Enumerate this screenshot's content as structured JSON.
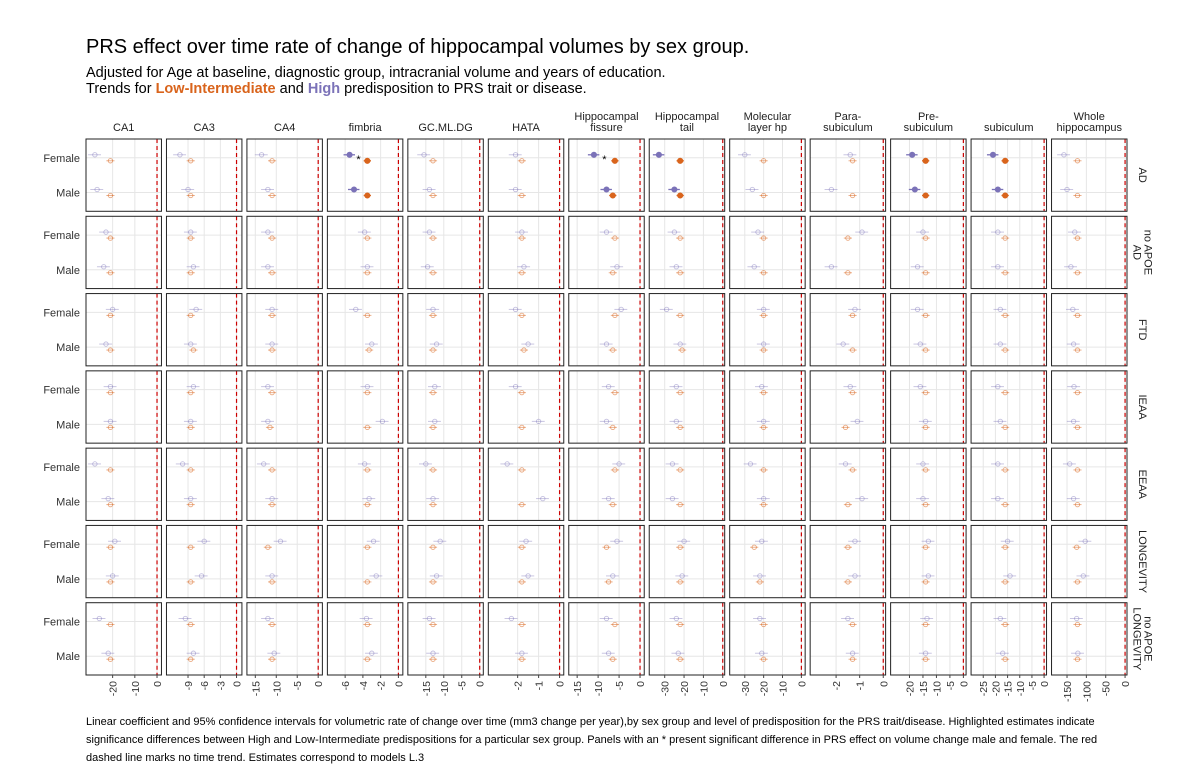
{
  "title": "PRS effect over time rate of change of hippocampal volumes by sex group.",
  "subtitle_line1": "Adjusted for Age at baseline, diagnostic group, intracranial volume and years of education.",
  "subtitle_line2": {
    "prefix": "Trends for ",
    "low_label": "Low-Intermediate",
    "mid": " and ",
    "high_label": "High",
    "suffix": " predisposition to PRS trait or disease."
  },
  "caption": "Linear coefficient and 95% confidence intervals for volumetric rate of change over time (mm3 change per year),by sex group and level of predisposition for the PRS trait/disease. Highlighted estimates indicate significance differences between High and Low-Intermediate predispositions for a particular sex group. Panels with an * present significant difference in PRS effect on volume change male and female. The red dashed line marks no time trend. Estimates correspond to models L.3",
  "colors": {
    "low": "#d9641c",
    "high": "#7b72b8",
    "zero_line": "#cc0000",
    "grid": "#e6e6e6"
  },
  "chart_data": {
    "type": "scatter",
    "subtype": "faceted forest plot (point estimates with 95% CI)",
    "rows_label": "sex group",
    "y_categories": [
      "Female",
      "Male"
    ],
    "series": [
      {
        "name": "Low-Intermediate",
        "color": "#d9641c"
      },
      {
        "name": "High",
        "color": "#7b72b8"
      }
    ],
    "columns": [
      {
        "label": [
          "CA1"
        ],
        "ticks": [
          -20,
          -10,
          0
        ],
        "xlim": [
          -32,
          2
        ]
      },
      {
        "label": [
          "CA3"
        ],
        "ticks": [
          -9,
          -6,
          -3,
          0
        ],
        "xlim": [
          -13,
          1
        ]
      },
      {
        "label": [
          "CA4"
        ],
        "ticks": [
          -15,
          -10,
          -5,
          0
        ],
        "xlim": [
          -17,
          1
        ]
      },
      {
        "label": [
          "fimbria"
        ],
        "ticks": [
          -6,
          -4,
          -2,
          0
        ],
        "xlim": [
          -8,
          0.5
        ]
      },
      {
        "label": [
          "GC.ML.DG"
        ],
        "ticks": [
          -15,
          -10,
          -5,
          0
        ],
        "xlim": [
          -20,
          1
        ]
      },
      {
        "label": [
          "HATA"
        ],
        "ticks": [
          -2,
          -1,
          0
        ],
        "xlim": [
          -3.4,
          0.2
        ]
      },
      {
        "label": [
          "Hippocampal",
          "fissure"
        ],
        "ticks": [
          -15,
          -10,
          -5,
          0
        ],
        "xlim": [
          -17,
          1
        ]
      },
      {
        "label": [
          "Hippocampal",
          "tail"
        ],
        "ticks": [
          -30,
          -20,
          -10,
          0
        ],
        "xlim": [
          -38,
          1
        ]
      },
      {
        "label": [
          "Molecular",
          "layer hp"
        ],
        "ticks": [
          -30,
          -20,
          -10,
          0
        ],
        "xlim": [
          -38,
          2
        ]
      },
      {
        "label": [
          "Para-",
          "subiculum"
        ],
        "ticks": [
          -2,
          -1,
          0
        ],
        "xlim": [
          -3.1,
          0.1
        ]
      },
      {
        "label": [
          "Pre-",
          "subiculum"
        ],
        "ticks": [
          -20,
          -15,
          -10,
          -5,
          0
        ],
        "xlim": [
          -27,
          1
        ]
      },
      {
        "label": [
          "subiculum"
        ],
        "ticks": [
          -25,
          -20,
          -15,
          -10,
          -5,
          0
        ],
        "xlim": [
          -30,
          1
        ]
      },
      {
        "label": [
          "Whole",
          "hippocampus"
        ],
        "ticks": [
          -150,
          -100,
          -50,
          0
        ],
        "xlim": [
          -190,
          5
        ]
      }
    ],
    "rows": [
      {
        "label": [
          "AD"
        ],
        "highlight_cols": [
          3,
          6,
          7,
          10,
          11
        ],
        "star_cols": [
          3,
          6
        ]
      },
      {
        "label": [
          "AD",
          "no APOE"
        ],
        "highlight_cols": [],
        "star_cols": []
      },
      {
        "label": [
          "FTD"
        ],
        "highlight_cols": [],
        "star_cols": []
      },
      {
        "label": [
          "IEAA"
        ],
        "highlight_cols": [],
        "star_cols": []
      },
      {
        "label": [
          "EEAA"
        ],
        "highlight_cols": [],
        "star_cols": []
      },
      {
        "label": [
          "LONGEVITY"
        ],
        "highlight_cols": [],
        "star_cols": []
      },
      {
        "label": [
          "LONGEVITY",
          "no APOE"
        ],
        "highlight_cols": [],
        "star_cols": []
      }
    ],
    "estimates": [
      {
        "low": [
          [
            -21,
            -21
          ],
          [
            -8.5,
            -8.5
          ],
          [
            -11,
            -11
          ],
          [
            -3.5,
            -3.5
          ],
          [
            -13,
            -13
          ],
          [
            -1.8,
            -1.8
          ],
          [
            -6,
            -6.5
          ],
          [
            -22,
            -22
          ],
          [
            -20,
            -20
          ],
          [
            -1.3,
            -1.3
          ],
          [
            -14,
            -14
          ],
          [
            -16,
            -16
          ],
          [
            -123,
            -123
          ]
        ],
        "high": [
          [
            -28,
            -27
          ],
          [
            -10.5,
            -9
          ],
          [
            -13.5,
            -12
          ],
          [
            -5.5,
            -5
          ],
          [
            -15.5,
            -14
          ],
          [
            -2.1,
            -2.1
          ],
          [
            -11,
            -8
          ],
          [
            -33,
            -25
          ],
          [
            -30,
            -26
          ],
          [
            -1.4,
            -2.2
          ],
          [
            -19,
            -18
          ],
          [
            -21,
            -19
          ],
          [
            -158,
            -150
          ]
        ]
      },
      {
        "low": [
          [
            -21,
            -21
          ],
          [
            -8.5,
            -8.5
          ],
          [
            -11,
            -11
          ],
          [
            -3.5,
            -3.5
          ],
          [
            -13,
            -13
          ],
          [
            -1.8,
            -1.8
          ],
          [
            -6,
            -6.5
          ],
          [
            -22,
            -22
          ],
          [
            -20,
            -20
          ],
          [
            -1.5,
            -1.5
          ],
          [
            -14,
            -14
          ],
          [
            -16,
            -16
          ],
          [
            -123,
            -123
          ]
        ],
        "high": [
          [
            -23,
            -24
          ],
          [
            -8.5,
            -8
          ],
          [
            -12,
            -12
          ],
          [
            -3.8,
            -3.5
          ],
          [
            -14,
            -14.5
          ],
          [
            -1.8,
            -1.7
          ],
          [
            -8,
            -5.5
          ],
          [
            -25,
            -24
          ],
          [
            -23,
            -25
          ],
          [
            -0.9,
            -2.2
          ],
          [
            -15,
            -17
          ],
          [
            -19,
            -19
          ],
          [
            -130,
            -140
          ]
        ]
      },
      {
        "low": [
          [
            -21,
            -21
          ],
          [
            -8.5,
            -8
          ],
          [
            -11,
            -11
          ],
          [
            -3.5,
            -3.3
          ],
          [
            -13,
            -13
          ],
          [
            -1.8,
            -1.7
          ],
          [
            -6,
            -6.5
          ],
          [
            -22,
            -21
          ],
          [
            -20,
            -20
          ],
          [
            -1.3,
            -1.3
          ],
          [
            -14,
            -14
          ],
          [
            -16,
            -16
          ],
          [
            -123,
            -123
          ]
        ],
        "high": [
          [
            -20,
            -23
          ],
          [
            -7.5,
            -8.5
          ],
          [
            -11,
            -11
          ],
          [
            -4.8,
            -3
          ],
          [
            -13,
            -12
          ],
          [
            -2.1,
            -1.5
          ],
          [
            -4.5,
            -8
          ],
          [
            -29,
            -22
          ],
          [
            -20,
            -20
          ],
          [
            -1.2,
            -1.7
          ],
          [
            -17,
            -16
          ],
          [
            -18,
            -18
          ],
          [
            -135,
            -133
          ]
        ]
      },
      {
        "low": [
          [
            -21,
            -21
          ],
          [
            -8.5,
            -8.5
          ],
          [
            -11,
            -11.5
          ],
          [
            -3.5,
            -3.5
          ],
          [
            -13,
            -13
          ],
          [
            -1.8,
            -1.8
          ],
          [
            -6,
            -6.5
          ],
          [
            -22,
            -22
          ],
          [
            -20,
            -20
          ],
          [
            -1.3,
            -1.6
          ],
          [
            -14,
            -14
          ],
          [
            -16,
            -16
          ],
          [
            -123,
            -123
          ]
        ],
        "high": [
          [
            -21,
            -21
          ],
          [
            -8,
            -8.5
          ],
          [
            -12,
            -12
          ],
          [
            -3.5,
            -1.8
          ],
          [
            -12.5,
            -12.5
          ],
          [
            -2.1,
            -1
          ],
          [
            -7.5,
            -8
          ],
          [
            -24,
            -24
          ],
          [
            -21,
            -20
          ],
          [
            -1.4,
            -1.1
          ],
          [
            -16,
            -14
          ],
          [
            -19,
            -18
          ],
          [
            -132,
            -133
          ]
        ]
      },
      {
        "low": [
          [
            -21,
            -21
          ],
          [
            -8.5,
            -8.5
          ],
          [
            -11,
            -11
          ],
          [
            -3.5,
            -3.5
          ],
          [
            -13,
            -13
          ],
          [
            -1.8,
            -1.8
          ],
          [
            -6,
            -6.5
          ],
          [
            -22,
            -22
          ],
          [
            -20,
            -20
          ],
          [
            -1.3,
            -1.5
          ],
          [
            -14,
            -14
          ],
          [
            -16,
            -16
          ],
          [
            -123,
            -123
          ]
        ],
        "high": [
          [
            -28,
            -22
          ],
          [
            -10,
            -8.5
          ],
          [
            -13,
            -11
          ],
          [
            -3.8,
            -3.3
          ],
          [
            -15,
            -13
          ],
          [
            -2.5,
            -0.8
          ],
          [
            -5,
            -7.5
          ],
          [
            -26,
            -26
          ],
          [
            -27,
            -20
          ],
          [
            -1.6,
            -0.9
          ],
          [
            -15,
            -15
          ],
          [
            -19,
            -19
          ],
          [
            -143,
            -133
          ]
        ]
      },
      {
        "low": [
          [
            -21,
            -21
          ],
          [
            -8.5,
            -8.5
          ],
          [
            -12,
            -11
          ],
          [
            -3.5,
            -3.5
          ],
          [
            -13,
            -13
          ],
          [
            -1.8,
            -1.8
          ],
          [
            -8,
            -7.5
          ],
          [
            -22,
            -22
          ],
          [
            -25,
            -22
          ],
          [
            -1.5,
            -1.5
          ],
          [
            -14,
            -14
          ],
          [
            -16,
            -16
          ],
          [
            -125,
            -123
          ]
        ],
        "high": [
          [
            -19,
            -20
          ],
          [
            -6,
            -6.5
          ],
          [
            -9,
            -11
          ],
          [
            -2.8,
            -2.5
          ],
          [
            -11,
            -12
          ],
          [
            -1.6,
            -1.5
          ],
          [
            -5.5,
            -6.5
          ],
          [
            -20,
            -21
          ],
          [
            -21,
            -22
          ],
          [
            -1.2,
            -1.2
          ],
          [
            -13,
            -13
          ],
          [
            -15,
            -14
          ],
          [
            -103,
            -108
          ]
        ]
      },
      {
        "low": [
          [
            -21,
            -21
          ],
          [
            -8.5,
            -8.5
          ],
          [
            -11,
            -11
          ],
          [
            -3.5,
            -3.5
          ],
          [
            -13,
            -13
          ],
          [
            -1.8,
            -1.8
          ],
          [
            -6,
            -6.5
          ],
          [
            -22,
            -22
          ],
          [
            -20,
            -20
          ],
          [
            -1.3,
            -1.3
          ],
          [
            -14,
            -14
          ],
          [
            -16,
            -16
          ],
          [
            -123,
            -123
          ]
        ],
        "high": [
          [
            -26,
            -22
          ],
          [
            -9.5,
            -8
          ],
          [
            -12,
            -10.5
          ],
          [
            -3.6,
            -3
          ],
          [
            -14,
            -13
          ],
          [
            -2.3,
            -1.8
          ],
          [
            -8,
            -7.5
          ],
          [
            -24,
            -23
          ],
          [
            -22,
            -21
          ],
          [
            -1.5,
            -1.3
          ],
          [
            -13.5,
            -14
          ],
          [
            -18,
            -17
          ],
          [
            -125,
            -122
          ]
        ]
      }
    ]
  }
}
